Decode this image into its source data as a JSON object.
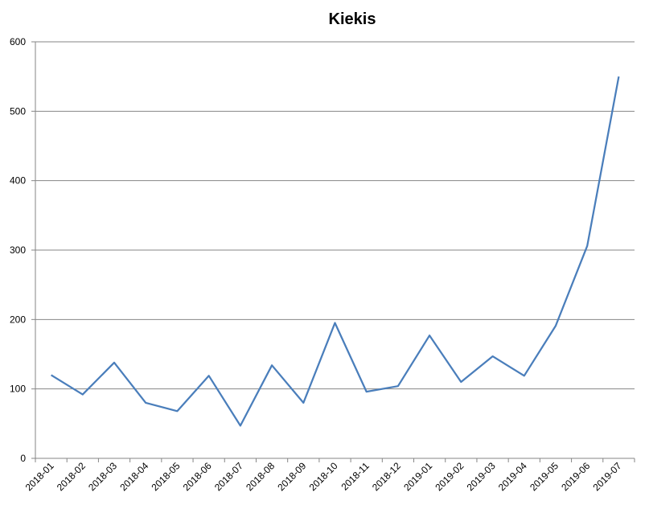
{
  "chart_data": {
    "type": "line",
    "title": "Kiekis",
    "xlabel": "",
    "ylabel": "",
    "categories": [
      "2018-01",
      "2018-02",
      "2018-03",
      "2018-04",
      "2018-05",
      "2018-06",
      "2018-07",
      "2018-08",
      "2018-09",
      "2018-10",
      "2018-11",
      "2018-12",
      "2019-01",
      "2019-02",
      "2019-03",
      "2019-04",
      "2019-05",
      "2019-06",
      "2019-07"
    ],
    "series": [
      {
        "values": [
          120,
          92,
          138,
          80,
          68,
          119,
          47,
          134,
          80,
          195,
          96,
          104,
          177,
          110,
          147,
          119,
          191,
          306,
          550
        ],
        "color": "#4a7ebb"
      }
    ],
    "ylim": [
      0,
      600
    ],
    "yticks": [
      0,
      100,
      200,
      300,
      400,
      500,
      600
    ],
    "grid": true,
    "legend": "none"
  }
}
